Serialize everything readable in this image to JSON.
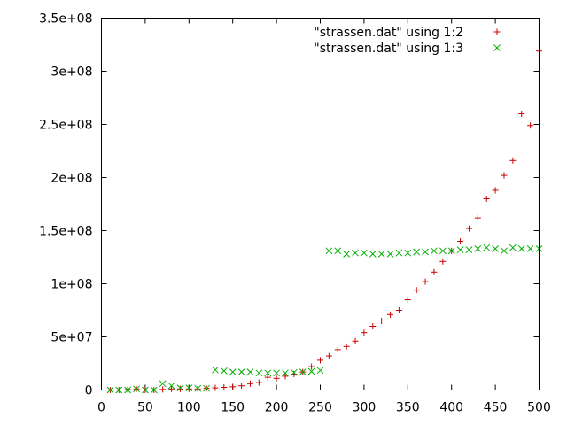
{
  "chart_data": {
    "type": "scatter",
    "title": "",
    "xlabel": "",
    "ylabel": "",
    "xlim": [
      0,
      500
    ],
    "ylim": [
      0,
      350000000
    ],
    "xticks": [
      0,
      50,
      100,
      150,
      200,
      250,
      300,
      350,
      400,
      450,
      500
    ],
    "xtick_labels": [
      "0",
      "50",
      "100",
      "150",
      "200",
      "250",
      "300",
      "350",
      "400",
      "450",
      "500"
    ],
    "yticks": [
      0,
      50000000,
      100000000,
      150000000,
      200000000,
      250000000,
      300000000,
      350000000
    ],
    "ytick_labels": [
      "0",
      "5e+07",
      "1e+08",
      "1.5e+08",
      "2e+08",
      "2.5e+08",
      "3e+08",
      "3.5e+08"
    ],
    "grid": false,
    "legend_position": "top-right",
    "x": [
      10,
      20,
      30,
      40,
      50,
      60,
      70,
      80,
      90,
      100,
      110,
      120,
      130,
      140,
      150,
      160,
      170,
      180,
      190,
      200,
      210,
      220,
      230,
      240,
      250,
      260,
      270,
      280,
      290,
      300,
      310,
      320,
      330,
      340,
      350,
      360,
      370,
      380,
      390,
      400,
      410,
      420,
      430,
      440,
      450,
      460,
      470,
      480,
      490,
      500
    ],
    "series": [
      {
        "name": "\"strassen.dat\" using 1:2",
        "marker": "plus",
        "color": "#cc0000",
        "values": [
          0,
          0,
          500000,
          1000000,
          0,
          0,
          500000,
          1000000,
          1000000,
          1000000,
          1000000,
          1500000,
          2000000,
          2500000,
          3000000,
          4000000,
          6000000,
          7000000,
          12000000,
          11000000,
          13000000,
          15000000,
          17000000,
          22000000,
          28000000,
          32000000,
          38000000,
          41000000,
          46000000,
          54000000,
          60000000,
          65000000,
          71000000,
          75000000,
          85000000,
          94000000,
          102000000,
          111000000,
          121000000,
          131000000,
          140000000,
          152000000,
          162000000,
          180000000,
          188000000,
          202000000,
          216000000,
          260000000,
          249000000,
          319000000
        ]
      },
      {
        "name": "\"strassen.dat\" using 1:3",
        "marker": "cross",
        "color": "#00b000",
        "values": [
          0,
          0,
          0,
          1000000,
          0,
          0,
          6000000,
          4000000,
          2000000,
          2000000,
          1500000,
          1500000,
          19000000,
          18000000,
          17000000,
          17000000,
          17000000,
          16000000,
          16000000,
          16000000,
          16000000,
          16500000,
          17000000,
          17500000,
          18500000,
          131000000,
          131000000,
          128000000,
          129000000,
          129000000,
          128000000,
          128000000,
          128000000,
          129000000,
          129000000,
          130000000,
          130000000,
          131000000,
          131000000,
          131000000,
          132000000,
          132000000,
          133000000,
          134000000,
          133000000,
          131000000,
          134000000,
          133000000,
          133000000,
          133000000
        ]
      }
    ]
  }
}
